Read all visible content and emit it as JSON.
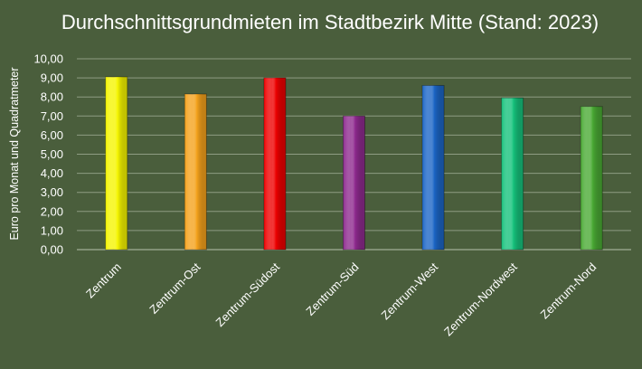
{
  "chart_data": {
    "type": "bar",
    "title": "Durchschnittsgrundmieten im Stadtbezirk Mitte (Stand: 2023)",
    "xlabel": "",
    "ylabel": "Euro pro Monat und Quadratmeter",
    "ylim": [
      0,
      10
    ],
    "ytick_step": 1,
    "ytick_labels": [
      "0,00",
      "1,00",
      "2,00",
      "3,00",
      "4,00",
      "5,00",
      "6,00",
      "7,00",
      "8,00",
      "9,00",
      "10,00"
    ],
    "grid": true,
    "legend": "none",
    "categories": [
      "Zentrum",
      "Zentrum-Ost",
      "Zentrum-Südost",
      "Zentrum-Süd",
      "Zentrum-West",
      "Zentrum-Nordwest",
      "Zentrum-Nord"
    ],
    "values": [
      9.05,
      8.15,
      9.0,
      7.0,
      8.6,
      7.95,
      7.5
    ],
    "colors": [
      "#f5f500",
      "#f5a21c",
      "#ee0000",
      "#8e2a8e",
      "#1c66c6",
      "#16c27c",
      "#4aaa34"
    ]
  }
}
